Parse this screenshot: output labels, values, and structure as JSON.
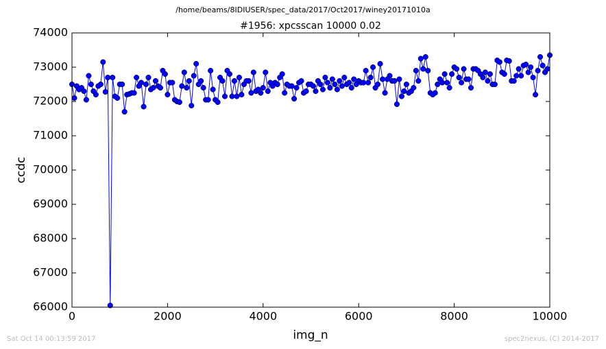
{
  "chart_data": {
    "type": "line",
    "suptitle": "/home/beams/8IDIUSER/spec_data/2017/Oct2017/winey20171010a",
    "title": "#1956: xpcsscan 10000 0.02",
    "xlabel": "img_n",
    "ylabel": "ccdc",
    "footer_left": "Sat Oct 14 00:13:59 2017",
    "footer_right": "spec2nexus, (C) 2014-2017",
    "xlim": [
      0,
      10000
    ],
    "xticks": [
      0,
      2000,
      4000,
      6000,
      8000,
      10000
    ],
    "ylim": [
      66000,
      74000
    ],
    "yticks": [
      66000,
      67000,
      68000,
      69000,
      70000,
      71000,
      72000,
      73000,
      74000
    ],
    "x": [
      0,
      50,
      100,
      150,
      200,
      250,
      300,
      350,
      400,
      450,
      500,
      550,
      600,
      650,
      700,
      750,
      800,
      850,
      900,
      950,
      1000,
      1050,
      1100,
      1150,
      1200,
      1250,
      1300,
      1350,
      1400,
      1450,
      1500,
      1550,
      1600,
      1650,
      1700,
      1750,
      1800,
      1850,
      1900,
      1950,
      2000,
      2050,
      2100,
      2150,
      2200,
      2250,
      2300,
      2350,
      2400,
      2450,
      2500,
      2550,
      2600,
      2650,
      2700,
      2750,
      2800,
      2850,
      2900,
      2950,
      3000,
      3050,
      3100,
      3150,
      3200,
      3250,
      3300,
      3350,
      3400,
      3450,
      3500,
      3550,
      3600,
      3650,
      3700,
      3750,
      3800,
      3850,
      3900,
      3950,
      4000,
      4050,
      4100,
      4150,
      4200,
      4250,
      4300,
      4350,
      4400,
      4450,
      4500,
      4550,
      4600,
      4650,
      4700,
      4750,
      4800,
      4850,
      4900,
      4950,
      5000,
      5050,
      5100,
      5150,
      5200,
      5250,
      5300,
      5350,
      5400,
      5450,
      5500,
      5550,
      5600,
      5650,
      5700,
      5750,
      5800,
      5850,
      5900,
      5950,
      6000,
      6050,
      6100,
      6150,
      6200,
      6250,
      6300,
      6350,
      6400,
      6450,
      6500,
      6550,
      6600,
      6650,
      6700,
      6750,
      6800,
      6850,
      6900,
      6950,
      7000,
      7050,
      7100,
      7150,
      7200,
      7250,
      7300,
      7350,
      7400,
      7450,
      7500,
      7550,
      7600,
      7650,
      7700,
      7750,
      7800,
      7850,
      7900,
      7950,
      8000,
      8050,
      8100,
      8150,
      8200,
      8250,
      8300,
      8350,
      8400,
      8450,
      8500,
      8550,
      8600,
      8650,
      8700,
      8750,
      8800,
      8850,
      8900,
      8950,
      9000,
      9050,
      9100,
      9150,
      9200,
      9250,
      9300,
      9350,
      9400,
      9450,
      9500,
      9550,
      9600,
      9650,
      9700,
      9750,
      9800,
      9850,
      9900,
      9950,
      10000
    ],
    "series": [
      {
        "name": "ccdc",
        "color": "#0000ff",
        "values": [
          72500,
          72100,
          72450,
          72350,
          72400,
          72300,
          72050,
          72750,
          72500,
          72300,
          72200,
          72450,
          72500,
          73150,
          72280,
          72700,
          66050,
          72700,
          72150,
          72100,
          72500,
          72500,
          71700,
          72200,
          72220,
          72250,
          72250,
          72700,
          72450,
          72550,
          71850,
          72500,
          72700,
          72350,
          72400,
          72600,
          72450,
          72400,
          72900,
          72800,
          72200,
          72550,
          72550,
          72050,
          72000,
          71980,
          72450,
          72850,
          72400,
          72600,
          71880,
          72750,
          73100,
          72500,
          72600,
          72400,
          72050,
          72050,
          72900,
          72350,
          72050,
          71980,
          72700,
          72600,
          72150,
          72900,
          72800,
          72150,
          72600,
          72150,
          72700,
          72200,
          72500,
          72600,
          72600,
          72250,
          72850,
          72300,
          72350,
          72250,
          72400,
          72850,
          72300,
          72550,
          72450,
          72550,
          72500,
          72700,
          72800,
          72250,
          72500,
          72450,
          72450,
          72080,
          72400,
          72550,
          72600,
          72250,
          72300,
          72500,
          72500,
          72450,
          72300,
          72600,
          72500,
          72350,
          72700,
          72550,
          72400,
          72650,
          72500,
          72350,
          72600,
          72450,
          72700,
          72500,
          72550,
          72400,
          72650,
          72500,
          72600,
          72550,
          72550,
          72900,
          72550,
          72700,
          73000,
          72400,
          72500,
          73100,
          72650,
          72250,
          72650,
          72750,
          72600,
          72600,
          71920,
          72650,
          72150,
          72300,
          72500,
          72250,
          72300,
          72400,
          72900,
          72600,
          73250,
          72950,
          73300,
          72900,
          72250,
          72200,
          72250,
          72500,
          72650,
          72550,
          72800,
          72550,
          72400,
          72800,
          73000,
          72950,
          72700,
          72550,
          72950,
          72650,
          72650,
          72400,
          72950,
          72950,
          72900,
          72800,
          72700,
          72850,
          72600,
          72800,
          72500,
          72500,
          73200,
          73150,
          72850,
          72800,
          73200,
          73180,
          72600,
          72600,
          72750,
          72950,
          72750,
          73050,
          73080,
          72850,
          73000,
          72700,
          72200,
          72900,
          73300,
          73050,
          72850,
          72950,
          73350
        ]
      }
    ]
  }
}
